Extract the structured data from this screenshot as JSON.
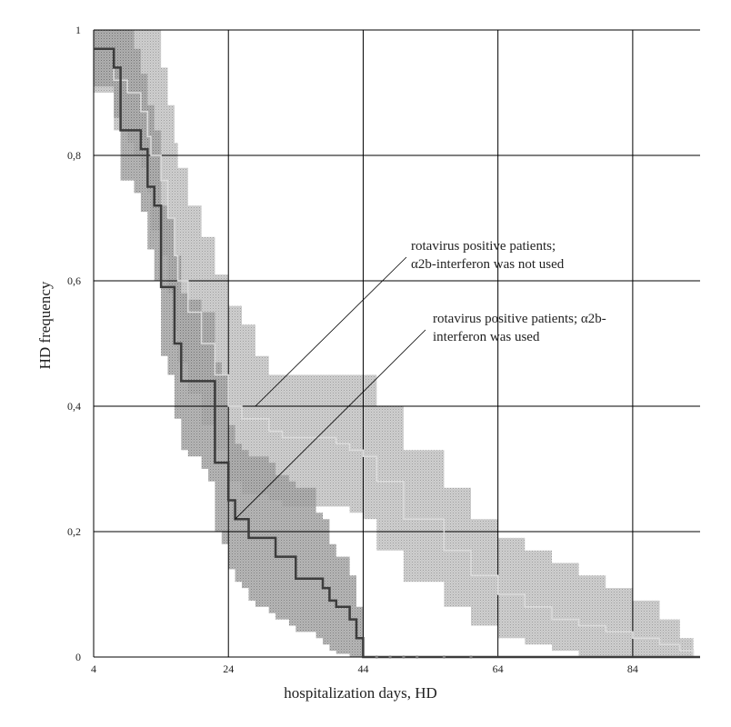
{
  "chart_data": {
    "type": "line",
    "xlabel": "hospitalization days, HD",
    "ylabel": "HD frequency",
    "xlim": [
      4,
      94
    ],
    "ylim": [
      0,
      1
    ],
    "x_ticks": [
      "4",
      "24",
      "44",
      "64",
      "84"
    ],
    "x_tick_values": [
      4,
      24,
      44,
      64,
      84
    ],
    "y_ticks": [
      "0",
      "0,2",
      "0,4",
      "0,6",
      "0,8",
      "1"
    ],
    "y_tick_values": [
      0,
      0.2,
      0.4,
      0.6,
      0.8,
      1
    ],
    "grid": true,
    "annotations": [
      {
        "lines": [
          "rotavirus positive patients;",
          "α2b-interferon was not used"
        ],
        "points_to": {
          "x": 28,
          "y": 0.4
        }
      },
      {
        "lines": [
          "rotavirus positive patients; α2b-",
          "interferon was used"
        ],
        "points_to": {
          "x": 25,
          "y": 0.22
        }
      }
    ],
    "colors": {
      "not_used_band": "#c6c6c6",
      "used_band": "#9a9a9a",
      "used_line": "#3c3c3c",
      "not_used_line": "#dcdcdc"
    },
    "series": [
      {
        "x": [
          4,
          7,
          9,
          10,
          11,
          12,
          12.5,
          14,
          15,
          16,
          16.5,
          18,
          20,
          22,
          24,
          26,
          28,
          30,
          32,
          34,
          36,
          38,
          40,
          42,
          44,
          46,
          50,
          56,
          60,
          64,
          68,
          72,
          76,
          80,
          84,
          88,
          91,
          93
        ],
        "y": [
          0.97,
          0.92,
          0.9,
          0.9,
          0.87,
          0.83,
          0.8,
          0.76,
          0.7,
          0.64,
          0.6,
          0.55,
          0.5,
          0.45,
          0.4,
          0.38,
          0.38,
          0.36,
          0.35,
          0.35,
          0.35,
          0.35,
          0.34,
          0.33,
          0.32,
          0.28,
          0.22,
          0.17,
          0.13,
          0.1,
          0.08,
          0.06,
          0.05,
          0.04,
          0.03,
          0.02,
          0.01,
          0
        ],
        "lower": [
          0.9,
          0.84,
          0.82,
          0.8,
          0.78,
          0.74,
          0.68,
          0.64,
          0.58,
          0.52,
          0.47,
          0.42,
          0.37,
          0.33,
          0.28,
          0.26,
          0.26,
          0.25,
          0.24,
          0.24,
          0.24,
          0.24,
          0.24,
          0.23,
          0.22,
          0.17,
          0.12,
          0.08,
          0.05,
          0.03,
          0.02,
          0.01,
          0,
          0,
          0,
          0,
          0,
          0
        ],
        "upper": [
          1,
          1,
          1,
          1,
          1,
          1,
          1,
          0.94,
          0.88,
          0.82,
          0.78,
          0.72,
          0.67,
          0.61,
          0.56,
          0.53,
          0.48,
          0.45,
          0.45,
          0.45,
          0.45,
          0.45,
          0.45,
          0.45,
          0.45,
          0.4,
          0.33,
          0.27,
          0.22,
          0.19,
          0.17,
          0.15,
          0.13,
          0.11,
          0.09,
          0.06,
          0.03,
          0
        ]
      },
      {
        "x": [
          4,
          7,
          8,
          10,
          11,
          12,
          13,
          14,
          15,
          16,
          17,
          18,
          20,
          21,
          22,
          23,
          24,
          25,
          26,
          27,
          28,
          30,
          31,
          33,
          34,
          37,
          38,
          39,
          40,
          42,
          43,
          44,
          45,
          60,
          94
        ],
        "y": [
          0.97,
          0.94,
          0.84,
          0.84,
          0.81,
          0.75,
          0.72,
          0.59,
          0.59,
          0.5,
          0.44,
          0.44,
          0.44,
          0.44,
          0.31,
          0.31,
          0.25,
          0.22,
          0.22,
          0.19,
          0.19,
          0.19,
          0.16,
          0.16,
          0.125,
          0.125,
          0.11,
          0.09,
          0.08,
          0.06,
          0.03,
          0,
          0,
          0,
          0
        ],
        "lower": [
          0.91,
          0.86,
          0.76,
          0.74,
          0.71,
          0.65,
          0.6,
          0.48,
          0.45,
          0.38,
          0.33,
          0.32,
          0.3,
          0.28,
          0.2,
          0.18,
          0.14,
          0.12,
          0.11,
          0.09,
          0.08,
          0.07,
          0.06,
          0.05,
          0.04,
          0.03,
          0.02,
          0.01,
          0.005,
          0,
          0,
          0,
          0,
          0,
          0
        ],
        "upper": [
          1,
          1,
          1,
          0.97,
          0.93,
          0.88,
          0.84,
          0.72,
          0.7,
          0.64,
          0.58,
          0.57,
          0.55,
          0.55,
          0.47,
          0.45,
          0.37,
          0.34,
          0.33,
          0.32,
          0.32,
          0.31,
          0.29,
          0.28,
          0.27,
          0.23,
          0.22,
          0.18,
          0.16,
          0.13,
          0.08,
          0,
          0,
          0,
          0
        ]
      }
    ]
  }
}
